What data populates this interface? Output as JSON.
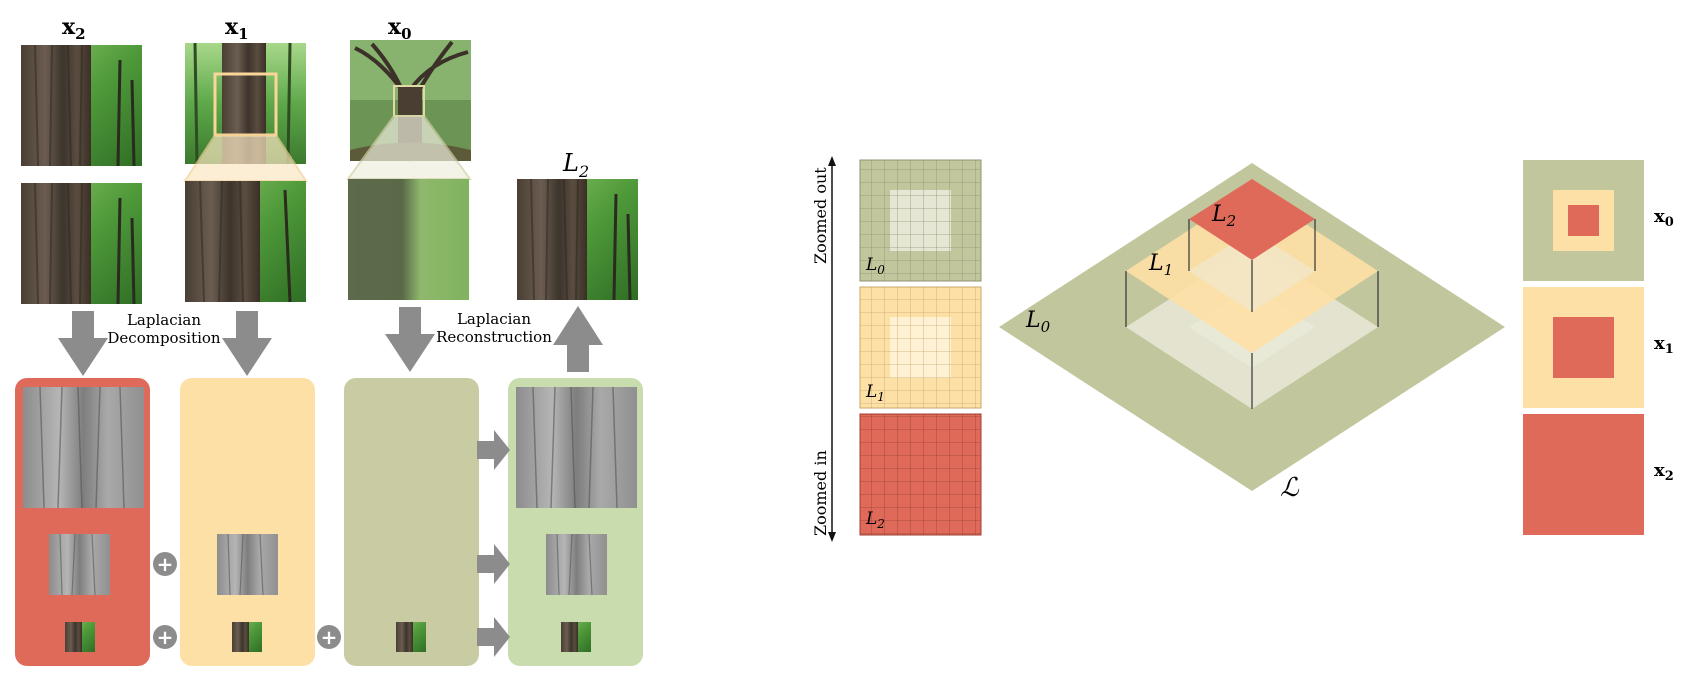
{
  "left_panel": {
    "columns": [
      {
        "label_main": "x",
        "label_sub": "2"
      },
      {
        "label_main": "x",
        "label_sub": "1"
      },
      {
        "label_main": "x",
        "label_sub": "0"
      }
    ],
    "result_label": {
      "main": "L",
      "sub": "2"
    },
    "decomposition": {
      "line1": "Laplacian",
      "line2": "Decomposition"
    },
    "reconstruction": {
      "line1": "Laplacian",
      "line2": "Reconstruction"
    },
    "plus_symbol": "+",
    "colors": {
      "red": "#e06a5a",
      "peach": "#fde0a6",
      "olive": "#c9cba3",
      "green": "#c8dcae",
      "arrow": "#8c8c8c"
    }
  },
  "right_panel": {
    "axis_top": "Zoomed out",
    "axis_bottom": "Zoomed in",
    "grid_labels": [
      {
        "main": "L",
        "sub": "0"
      },
      {
        "main": "L",
        "sub": "1"
      },
      {
        "main": "L",
        "sub": "2"
      }
    ],
    "pyramid_labels": [
      {
        "main": "L",
        "sub": "2"
      },
      {
        "main": "L",
        "sub": "1"
      },
      {
        "main": "L",
        "sub": "0"
      }
    ],
    "base_label": "ℒ",
    "side_labels": [
      {
        "main": "x",
        "sub": "0"
      },
      {
        "main": "x",
        "sub": "1"
      },
      {
        "main": "x",
        "sub": "2"
      }
    ],
    "colors": {
      "olive": "#c2c69c",
      "peach": "#fde0a6",
      "red": "#e06a5a",
      "pale": "#e6e6d4"
    }
  }
}
